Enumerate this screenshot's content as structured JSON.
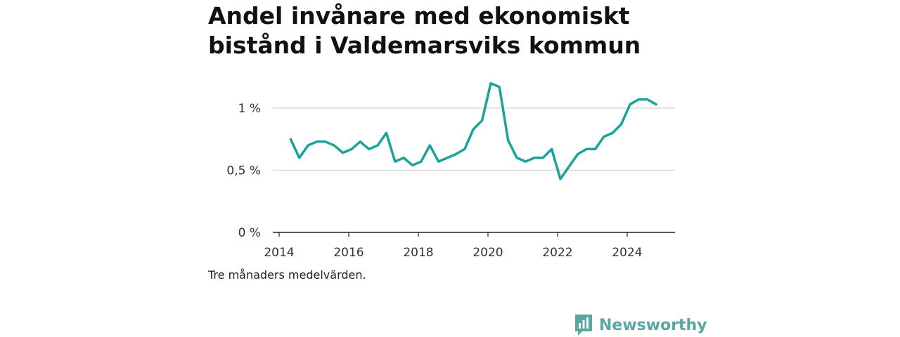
{
  "chart_data": {
    "type": "line",
    "title": "Andel invånare med ekonomiskt bistånd i Valdemarsviks kommun",
    "caption": "Tre månaders medelvärden.",
    "xlabel": "",
    "ylabel": "",
    "y_unit": "%",
    "ylim": [
      0,
      1.1
    ],
    "xlim": [
      2014,
      2025.3
    ],
    "x_ticks": [
      2014,
      2016,
      2018,
      2020,
      2022,
      2024
    ],
    "x_tick_labels": [
      "2014",
      "2016",
      "2018",
      "2020",
      "2022",
      "2024"
    ],
    "y_ticks": [
      0,
      0.5,
      1
    ],
    "y_tick_labels": [
      "0 %",
      "0,5 %",
      "1 %"
    ],
    "grid": true,
    "line_color": "#1aa39a",
    "series": [
      {
        "x": [
          2014.33,
          2014.58,
          2014.83,
          2015.08,
          2015.33,
          2015.58,
          2015.83,
          2016.08,
          2016.33,
          2016.58,
          2016.83,
          2017.08,
          2017.33,
          2017.58,
          2017.83,
          2018.08,
          2018.33,
          2018.58,
          2018.83,
          2019.08,
          2019.33,
          2019.58,
          2019.83,
          2020.08,
          2020.33,
          2020.58,
          2020.83,
          2021.08,
          2021.33,
          2021.58,
          2021.83,
          2022.08,
          2022.33,
          2022.58,
          2022.83,
          2023.08,
          2023.33,
          2023.58,
          2023.83,
          2024.08,
          2024.33,
          2024.58,
          2024.83
        ],
        "y": [
          0.75,
          0.6,
          0.7,
          0.73,
          0.73,
          0.7,
          0.64,
          0.67,
          0.73,
          0.67,
          0.7,
          0.8,
          0.57,
          0.6,
          0.54,
          0.57,
          0.7,
          0.57,
          0.6,
          0.63,
          0.67,
          0.83,
          0.9,
          1.2,
          1.17,
          0.74,
          0.6,
          0.57,
          0.6,
          0.6,
          0.67,
          0.43,
          0.53,
          0.63,
          0.67,
          0.67,
          0.77,
          0.8,
          0.87,
          1.03,
          1.07,
          1.07,
          1.03
        ]
      }
    ]
  },
  "brand": {
    "name": "Newsworthy",
    "icon": "newsworthy-logo-icon",
    "color": "#5aa6a2"
  }
}
